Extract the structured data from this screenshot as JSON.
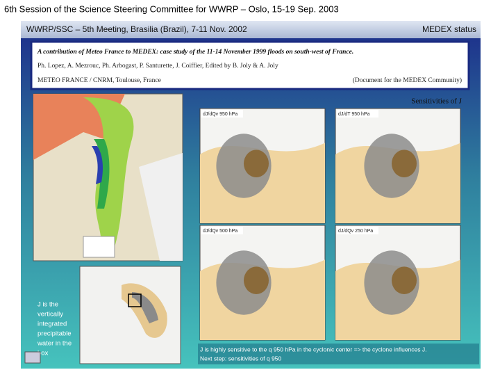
{
  "header": {
    "title": "6th Session of the Science Steering Committee for WWRP – Oslo, 15-19 Sep. 2003"
  },
  "slide": {
    "header_left": "WWRP/SSC –  5th Meeting, Brasilia (Brazil), 7-11 Nov. 2002",
    "header_right": "MEDEX status",
    "box_lines": [
      "A contribution of Meteo France to MEDEX: case study of the 11-14 November 1999 floods on south-west of France.",
      "Ph. Lopez, A. Mezrouc, Ph. Arbogast, P. Santurette, J. Coiffier, Edited by B. Joly & A. Joly"
    ],
    "box_affiliation": "METEO FRANCE / CNRM, Toulouse, France",
    "box_note": "(Document for the MEDEX Community)",
    "sensitivities_title": "Sensitivities of J",
    "panels": [
      "dJ/dQv 950 hPa",
      "dJ/dT 950 hPa",
      "dJ/dQv 500 hPa",
      "dJ/dQv 250 hPa"
    ],
    "j_note": [
      "J is the",
      "vertically",
      "integrated",
      "precipitable",
      "water in the",
      "box"
    ],
    "caption": [
      "J is highly sensitive to the q 950 hPa in the cyclonic center => the cyclone influences J.",
      "Next step: sensitivities of q 950"
    ]
  }
}
